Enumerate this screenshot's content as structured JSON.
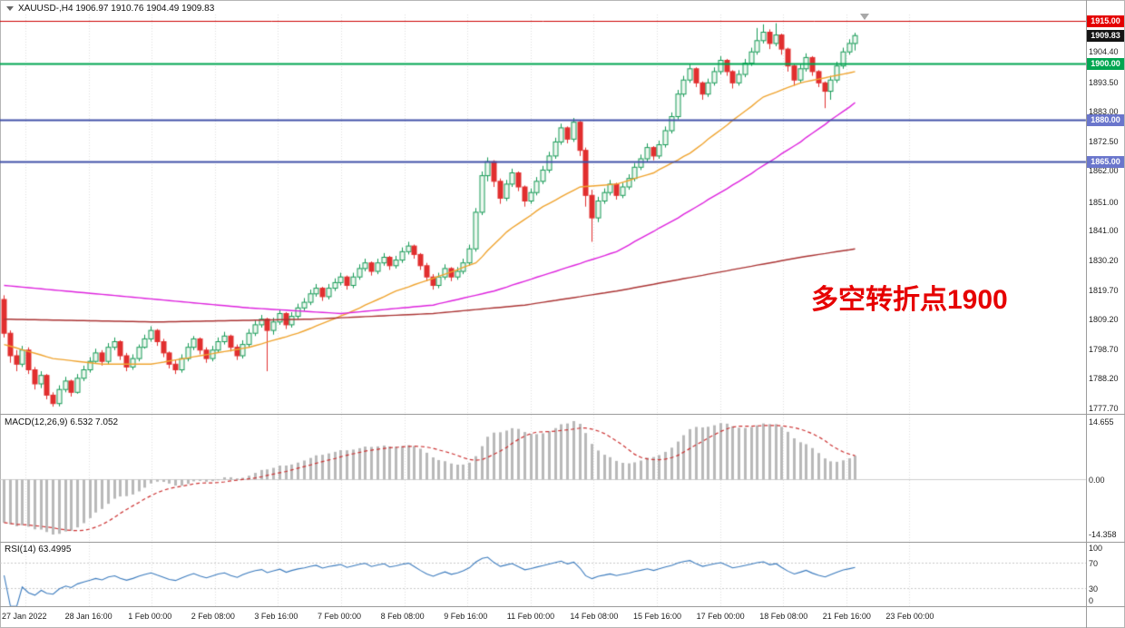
{
  "header": {
    "symbol_ohlc": "XAUUSD-,H4 1906.97 1910.76 1904.49 1909.83"
  },
  "annotation": {
    "text": "多空转折点1900",
    "color": "#e60000"
  },
  "time_axis": [
    "27 Jan 2022",
    "28 Jan 16:00",
    "1 Feb 00:00",
    "2 Feb 08:00",
    "3 Feb 16:00",
    "7 Feb 00:00",
    "8 Feb 08:00",
    "9 Feb 16:00",
    "11 Feb 00:00",
    "14 Feb 08:00",
    "15 Feb 16:00",
    "17 Feb 00:00",
    "18 Feb 08:00",
    "21 Feb 16:00",
    "23 Feb 00:00"
  ],
  "chart_data": {
    "type": "candlestick",
    "symbol": "XAUUSD",
    "timeframe": "H4",
    "ohlc_current": {
      "open": "1906.97",
      "high": "1910.76",
      "low": "1904.49",
      "close": "1909.83"
    },
    "ylim": [
      1777.7,
      1916.0
    ],
    "y_ticks": [
      "1904.40",
      "1893.50",
      "1883.00",
      "1872.50",
      "1862.00",
      "1851.00",
      "1841.00",
      "1830.20",
      "1819.70",
      "1809.20",
      "1798.70",
      "1788.20",
      "1777.70"
    ],
    "price_levels": [
      {
        "label": "1915.00",
        "value": 1915,
        "color": "#cc0000",
        "badge": "#e40000",
        "width": 1
      },
      {
        "label": "1900.00",
        "value": 1900,
        "color": "#00a651",
        "badge": "#00a651",
        "width": 2
      },
      {
        "label": "1880.00",
        "value": 1880,
        "color": "#4150a8",
        "badge": "#6a76cc",
        "width": 2
      },
      {
        "label": "1865.00",
        "value": 1865,
        "color": "#4150a8",
        "badge": "#6a76cc",
        "width": 2
      }
    ],
    "current_price": {
      "label": "1909.83",
      "value": 1909.83,
      "badge": "#141414"
    },
    "candles": [
      [
        1816,
        1817.5,
        1802.5,
        1804
      ],
      [
        1804,
        1805,
        1793.5,
        1796
      ],
      [
        1796,
        1798,
        1790.5,
        1793
      ],
      [
        1793,
        1799.5,
        1792,
        1798
      ],
      [
        1798,
        1799,
        1789.5,
        1791
      ],
      [
        1791,
        1792,
        1784,
        1786
      ],
      [
        1786,
        1790.5,
        1784.5,
        1789
      ],
      [
        1789,
        1789.5,
        1780.5,
        1782
      ],
      [
        1782,
        1783,
        1777.9,
        1779
      ],
      [
        1779,
        1785.5,
        1778,
        1784
      ],
      [
        1784,
        1788.5,
        1783,
        1787
      ],
      [
        1787,
        1787.5,
        1781.5,
        1783
      ],
      [
        1783,
        1789.5,
        1782.5,
        1788
      ],
      [
        1788,
        1792.5,
        1787,
        1791
      ],
      [
        1791,
        1795.5,
        1790,
        1794
      ],
      [
        1794,
        1798.5,
        1793.5,
        1797
      ],
      [
        1797,
        1798,
        1792.5,
        1794
      ],
      [
        1794,
        1800.5,
        1793,
        1799
      ],
      [
        1799,
        1802.5,
        1798,
        1801
      ],
      [
        1801,
        1801.5,
        1794.5,
        1796
      ],
      [
        1796,
        1797,
        1790.5,
        1792
      ],
      [
        1792,
        1796.5,
        1791,
        1795
      ],
      [
        1795,
        1800,
        1794,
        1799
      ],
      [
        1799,
        1803.5,
        1798.5,
        1802
      ],
      [
        1802,
        1806.5,
        1801,
        1805
      ],
      [
        1805,
        1805.5,
        1799.5,
        1801
      ],
      [
        1801,
        1802,
        1795.5,
        1797
      ],
      [
        1797,
        1797.5,
        1791.5,
        1793
      ],
      [
        1793,
        1794.5,
        1789.5,
        1791
      ],
      [
        1791,
        1796.5,
        1790,
        1795
      ],
      [
        1795,
        1800.5,
        1794,
        1799
      ],
      [
        1799,
        1803,
        1798,
        1802
      ],
      [
        1802,
        1802.5,
        1796.5,
        1798
      ],
      [
        1798,
        1799,
        1793.5,
        1795
      ],
      [
        1795,
        1799.5,
        1794,
        1798
      ],
      [
        1798,
        1802.5,
        1797,
        1801
      ],
      [
        1801,
        1804.5,
        1800,
        1803
      ],
      [
        1803,
        1803.5,
        1797.5,
        1799
      ],
      [
        1799,
        1800,
        1794.5,
        1796
      ],
      [
        1796,
        1801.5,
        1795,
        1800
      ],
      [
        1800,
        1805.5,
        1799,
        1804
      ],
      [
        1804,
        1808.5,
        1803,
        1807
      ],
      [
        1807,
        1810.5,
        1806,
        1809
      ],
      [
        1809,
        1809.5,
        1790.5,
        1805
      ],
      [
        1805,
        1809.5,
        1803.5,
        1808
      ],
      [
        1808,
        1812.5,
        1807,
        1811
      ],
      [
        1811,
        1811.5,
        1805.5,
        1807
      ],
      [
        1807,
        1811.5,
        1806,
        1810
      ],
      [
        1810,
        1814.5,
        1809,
        1813
      ],
      [
        1813,
        1816.5,
        1812,
        1815
      ],
      [
        1815,
        1819.5,
        1814,
        1818
      ],
      [
        1818,
        1821.5,
        1817,
        1820
      ],
      [
        1820,
        1820.5,
        1815.5,
        1817
      ],
      [
        1817,
        1821.5,
        1816,
        1820
      ],
      [
        1820,
        1823.5,
        1819,
        1822
      ],
      [
        1822,
        1825.5,
        1821,
        1824
      ],
      [
        1824,
        1824.5,
        1819.5,
        1821
      ],
      [
        1821,
        1825.5,
        1820,
        1824
      ],
      [
        1824,
        1828.5,
        1823,
        1827
      ],
      [
        1827,
        1830.5,
        1826,
        1829
      ],
      [
        1829,
        1829.5,
        1824.5,
        1826
      ],
      [
        1826,
        1830.5,
        1825,
        1829
      ],
      [
        1829,
        1832.5,
        1828,
        1831
      ],
      [
        1831,
        1831.5,
        1826.5,
        1828
      ],
      [
        1828,
        1831.5,
        1827,
        1830
      ],
      [
        1830,
        1834.5,
        1829,
        1833
      ],
      [
        1833,
        1836.5,
        1832,
        1835
      ],
      [
        1835,
        1835.5,
        1830.5,
        1832
      ],
      [
        1832,
        1832.5,
        1826.5,
        1828
      ],
      [
        1828,
        1829,
        1822.5,
        1824
      ],
      [
        1824,
        1825,
        1819.5,
        1821
      ],
      [
        1821,
        1825.5,
        1820,
        1824
      ],
      [
        1824,
        1828.5,
        1823,
        1827
      ],
      [
        1827,
        1827.5,
        1822.5,
        1824
      ],
      [
        1824,
        1827.5,
        1823,
        1826
      ],
      [
        1826,
        1830.5,
        1825,
        1829
      ],
      [
        1829,
        1835.5,
        1828,
        1834
      ],
      [
        1834,
        1848.5,
        1833,
        1847
      ],
      [
        1847,
        1861.5,
        1846,
        1860
      ],
      [
        1860,
        1866.5,
        1858,
        1865
      ],
      [
        1865,
        1865.5,
        1856,
        1858
      ],
      [
        1858,
        1859,
        1850,
        1852
      ],
      [
        1852,
        1858.5,
        1851,
        1857
      ],
      [
        1857,
        1862.5,
        1856,
        1861
      ],
      [
        1861,
        1861.5,
        1854.5,
        1856
      ],
      [
        1856,
        1856.5,
        1849,
        1851
      ],
      [
        1851,
        1855.5,
        1850,
        1854
      ],
      [
        1854,
        1859.5,
        1853,
        1858
      ],
      [
        1858,
        1863.5,
        1857,
        1862
      ],
      [
        1862,
        1868.5,
        1861,
        1867
      ],
      [
        1867,
        1873.5,
        1866,
        1872
      ],
      [
        1872,
        1878.5,
        1871,
        1877
      ],
      [
        1877,
        1877.5,
        1871.5,
        1873
      ],
      [
        1873,
        1880.5,
        1872,
        1879
      ],
      [
        1879,
        1879.5,
        1867,
        1869
      ],
      [
        1869,
        1870,
        1849,
        1853
      ],
      [
        1853,
        1855,
        1836.5,
        1845
      ],
      [
        1845,
        1852.5,
        1843.5,
        1851
      ],
      [
        1851,
        1855.5,
        1850,
        1854
      ],
      [
        1854,
        1858.5,
        1853,
        1857
      ],
      [
        1857,
        1857.5,
        1851.5,
        1853
      ],
      [
        1853,
        1857.5,
        1852,
        1856
      ],
      [
        1856,
        1860.5,
        1855,
        1859
      ],
      [
        1859,
        1864.5,
        1858,
        1863
      ],
      [
        1863,
        1867.5,
        1862,
        1866
      ],
      [
        1866,
        1871.5,
        1865,
        1870
      ],
      [
        1870,
        1870.5,
        1865.5,
        1867
      ],
      [
        1867,
        1872.5,
        1866,
        1871
      ],
      [
        1871,
        1877.5,
        1870,
        1876
      ],
      [
        1876,
        1882.5,
        1875,
        1881
      ],
      [
        1881,
        1890.5,
        1880,
        1889
      ],
      [
        1889,
        1895.5,
        1888,
        1894
      ],
      [
        1894,
        1899.5,
        1893,
        1898
      ],
      [
        1898,
        1898.5,
        1891.5,
        1893
      ],
      [
        1893,
        1893.5,
        1887,
        1889
      ],
      [
        1889,
        1894.5,
        1888,
        1893
      ],
      [
        1893,
        1898.5,
        1892,
        1897
      ],
      [
        1897,
        1902.5,
        1896,
        1901
      ],
      [
        1901,
        1901.5,
        1895.5,
        1897
      ],
      [
        1897,
        1897.5,
        1891,
        1893
      ],
      [
        1893,
        1897.5,
        1892,
        1896
      ],
      [
        1896,
        1901.5,
        1895,
        1900
      ],
      [
        1900,
        1905.5,
        1899,
        1904
      ],
      [
        1904,
        1912.5,
        1903,
        1908
      ],
      [
        1908,
        1913.8,
        1907,
        1911
      ],
      [
        1911,
        1912,
        1905,
        1907
      ],
      [
        1907,
        1914.2,
        1906,
        1910
      ],
      [
        1910,
        1910.5,
        1903,
        1905
      ],
      [
        1905,
        1905.5,
        1897,
        1899
      ],
      [
        1899,
        1899.5,
        1892,
        1894
      ],
      [
        1894,
        1899.5,
        1893,
        1898
      ],
      [
        1898,
        1903.5,
        1897,
        1902
      ],
      [
        1902,
        1902.5,
        1895.5,
        1897
      ],
      [
        1897,
        1897.5,
        1891.5,
        1893
      ],
      [
        1893,
        1893.5,
        1884,
        1890
      ],
      [
        1890,
        1895.5,
        1887,
        1894
      ],
      [
        1894,
        1900.5,
        1893,
        1899
      ],
      [
        1899,
        1905.5,
        1898,
        1904
      ],
      [
        1904,
        1908.5,
        1903,
        1907
      ],
      [
        1907,
        1910.8,
        1904.5,
        1909.8
      ]
    ],
    "ma_lines": [
      {
        "name": "ma-fast-orange",
        "color": "#efa32e",
        "anchors": [
          [
            0,
            1800
          ],
          [
            8,
            1795
          ],
          [
            16,
            1793
          ],
          [
            24,
            1793
          ],
          [
            32,
            1796
          ],
          [
            40,
            1799
          ],
          [
            48,
            1804
          ],
          [
            56,
            1811
          ],
          [
            64,
            1819
          ],
          [
            72,
            1825
          ],
          [
            77,
            1829
          ],
          [
            82,
            1840
          ],
          [
            88,
            1849
          ],
          [
            94,
            1856
          ],
          [
            100,
            1857
          ],
          [
            106,
            1861
          ],
          [
            112,
            1868
          ],
          [
            118,
            1878
          ],
          [
            124,
            1888
          ],
          [
            130,
            1893
          ],
          [
            139,
            1897
          ]
        ]
      },
      {
        "name": "ma-mid-magenta",
        "color": "#dd22dd",
        "anchors": [
          [
            0,
            1821
          ],
          [
            20,
            1817
          ],
          [
            40,
            1813
          ],
          [
            55,
            1811
          ],
          [
            70,
            1814
          ],
          [
            80,
            1819
          ],
          [
            90,
            1826
          ],
          [
            100,
            1833
          ],
          [
            110,
            1845
          ],
          [
            120,
            1858
          ],
          [
            130,
            1872
          ],
          [
            139,
            1886
          ]
        ]
      },
      {
        "name": "ma-slow-darkred",
        "color": "#aa3333",
        "anchors": [
          [
            0,
            1809
          ],
          [
            25,
            1808
          ],
          [
            50,
            1809
          ],
          [
            70,
            1811
          ],
          [
            85,
            1814
          ],
          [
            100,
            1819
          ],
          [
            115,
            1825
          ],
          [
            130,
            1831
          ],
          [
            139,
            1834
          ]
        ]
      }
    ],
    "macd": {
      "label": "MACD(12,26,9) 6.532 7.052",
      "ticks": [
        "14.655",
        "0.00",
        "-14.358"
      ],
      "hist_color": "#b9b9b9",
      "signal_color": "#cc3333",
      "seed_offset": [
        5,
        14
      ]
    },
    "rsi": {
      "label": "RSI(14) 63.4995",
      "ticks": [
        "100",
        "70",
        "30",
        "0"
      ],
      "color": "#3a7abd",
      "levels": [
        70,
        30
      ]
    }
  }
}
